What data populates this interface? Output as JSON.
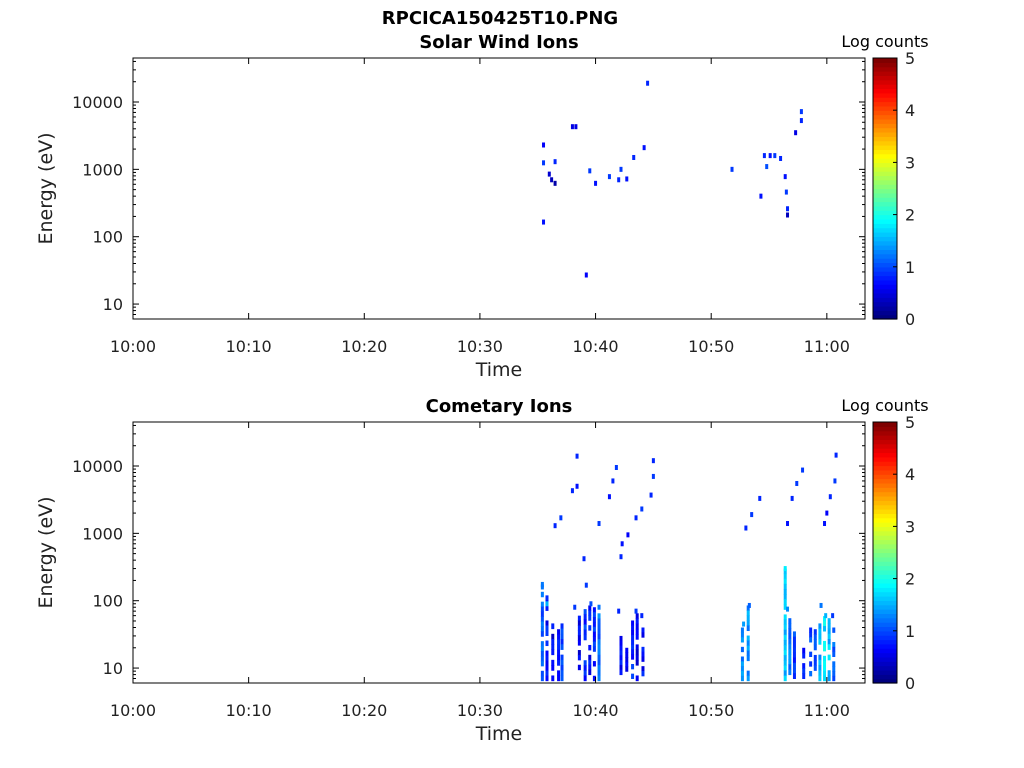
{
  "figure_title": "RPCICA150425T10.PNG",
  "palette_stops": [
    "#00007f",
    "#0000ff",
    "#0080ff",
    "#00ffff",
    "#80ff80",
    "#ffff00",
    "#ff8000",
    "#ff0000",
    "#7f0000"
  ],
  "chart_data": [
    {
      "type": "heatmap",
      "title": "Solar Wind Ions",
      "xlabel": "Time",
      "ylabel": "Energy (eV)",
      "x_ticks": [
        "10:00",
        "10:10",
        "10:20",
        "10:30",
        "10:40",
        "10:50",
        "11:00"
      ],
      "x_range_minutes": [
        0,
        63.3
      ],
      "y_scale": "log",
      "y_ticks": [
        "10",
        "100",
        "1000",
        "10000"
      ],
      "y_range": [
        6,
        45000
      ],
      "colorbar": {
        "label": "Log counts",
        "range": [
          0,
          5
        ],
        "ticks": [
          "0",
          "1",
          "2",
          "3",
          "4",
          "5"
        ]
      },
      "cells": [
        [
          35.5,
          2300,
          0.6
        ],
        [
          35.5,
          1250,
          0.9
        ],
        [
          35.5,
          165,
          0.7
        ],
        [
          36.0,
          850,
          0.4
        ],
        [
          36.2,
          700,
          0.3
        ],
        [
          36.5,
          620,
          0.2
        ],
        [
          36.5,
          1300,
          0.8
        ],
        [
          38.0,
          4300,
          0.5
        ],
        [
          38.3,
          4300,
          0.5
        ],
        [
          39.2,
          27,
          0.6
        ],
        [
          39.5,
          950,
          0.9
        ],
        [
          40.0,
          620,
          0.7
        ],
        [
          41.2,
          780,
          0.9
        ],
        [
          42.0,
          700,
          0.8
        ],
        [
          42.2,
          1000,
          0.9
        ],
        [
          42.7,
          720,
          0.7
        ],
        [
          43.3,
          1500,
          0.8
        ],
        [
          44.2,
          2100,
          0.7
        ],
        [
          44.5,
          19000,
          0.8
        ],
        [
          51.8,
          1000,
          0.9
        ],
        [
          54.3,
          400,
          0.7
        ],
        [
          54.6,
          1600,
          0.8
        ],
        [
          54.8,
          1100,
          1.0
        ],
        [
          55.1,
          1600,
          0.7
        ],
        [
          55.5,
          1600,
          0.9
        ],
        [
          56.0,
          1450,
          0.8
        ],
        [
          56.4,
          780,
          0.7
        ],
        [
          56.5,
          460,
          0.9
        ],
        [
          56.6,
          260,
          0.8
        ],
        [
          56.6,
          210,
          0.3
        ],
        [
          57.3,
          3500,
          0.5
        ],
        [
          57.8,
          7200,
          0.9
        ],
        [
          57.8,
          5300,
          0.8
        ]
      ]
    },
    {
      "type": "heatmap",
      "title": "Cometary Ions",
      "xlabel": "Time",
      "ylabel": "Energy (eV)",
      "x_ticks": [
        "10:00",
        "10:10",
        "10:20",
        "10:30",
        "10:40",
        "10:50",
        "11:00"
      ],
      "x_range_minutes": [
        0,
        63.3
      ],
      "y_scale": "log",
      "y_ticks": [
        "10",
        "100",
        "1000",
        "10000"
      ],
      "y_range": [
        6,
        45000
      ],
      "colorbar": {
        "label": "Log counts",
        "range": [
          0,
          5
        ],
        "ticks": [
          "0",
          "1",
          "2",
          "3",
          "4",
          "5"
        ]
      },
      "cells": [
        [
          38.4,
          14000,
          0.8
        ],
        [
          38.4,
          5000,
          0.7
        ],
        [
          38.0,
          4300,
          0.8
        ],
        [
          37.0,
          1700,
          0.9
        ],
        [
          36.5,
          1300,
          0.8
        ],
        [
          41.8,
          9500,
          0.9
        ],
        [
          41.5,
          6000,
          0.8
        ],
        [
          41.2,
          3500,
          0.7
        ],
        [
          40.3,
          1400,
          0.9
        ],
        [
          42.3,
          700,
          0.7
        ],
        [
          42.2,
          450,
          0.8
        ],
        [
          42.8,
          950,
          0.6
        ],
        [
          43.5,
          1700,
          0.8
        ],
        [
          44.0,
          2300,
          0.9
        ],
        [
          44.8,
          3700,
          0.8
        ],
        [
          45.0,
          7000,
          0.9
        ],
        [
          45.0,
          12000,
          0.8
        ],
        [
          39.0,
          420,
          0.8
        ],
        [
          39.2,
          170,
          0.9
        ],
        [
          53.0,
          1200,
          0.8
        ],
        [
          53.5,
          1900,
          0.9
        ],
        [
          54.2,
          3300,
          0.8
        ],
        [
          56.6,
          1400,
          0.7
        ],
        [
          57.0,
          3300,
          0.8
        ],
        [
          57.4,
          5500,
          0.9
        ],
        [
          57.9,
          8700,
          0.9
        ],
        [
          59.8,
          1400,
          0.7
        ],
        [
          60.3,
          3500,
          0.8
        ],
        [
          60.7,
          6000,
          0.9
        ],
        [
          60.8,
          14500,
          0.8
        ],
        [
          60.0,
          2000,
          0.6
        ],
        [
          35.4,
          160,
          1.2
        ],
        [
          35.8,
          90,
          1.5
        ],
        [
          38.2,
          80,
          0.9
        ],
        [
          39.6,
          90,
          1.0
        ],
        [
          40.3,
          80,
          1.2
        ],
        [
          42.0,
          70,
          0.8
        ],
        [
          43.5,
          70,
          0.9
        ],
        [
          44.0,
          60,
          0.8
        ],
        [
          52.8,
          45,
          1.4
        ],
        [
          53.3,
          85,
          1.1
        ],
        [
          56.4,
          300,
          1.8
        ],
        [
          56.6,
          75,
          1.3
        ],
        [
          59.5,
          85,
          1.2
        ],
        [
          59.9,
          60,
          1.5
        ],
        [
          60.5,
          60,
          0.9
        ]
      ],
      "columns": [
        [
          35.4,
          6.5,
          190,
          1.0
        ],
        [
          35.8,
          6.5,
          120,
          0.6
        ],
        [
          36.3,
          6.5,
          55,
          0.5
        ],
        [
          36.8,
          6.5,
          45,
          0.7
        ],
        [
          37.1,
          6.5,
          55,
          0.8
        ],
        [
          38.6,
          8,
          60,
          0.5
        ],
        [
          39.1,
          6.5,
          75,
          0.8
        ],
        [
          39.5,
          8,
          85,
          0.6
        ],
        [
          39.9,
          6.5,
          80,
          0.7
        ],
        [
          40.3,
          6.5,
          65,
          1.1
        ],
        [
          42.2,
          8,
          30,
          0.6
        ],
        [
          42.7,
          6.5,
          20,
          0.5
        ],
        [
          43.2,
          7,
          60,
          0.7
        ],
        [
          43.6,
          6.5,
          65,
          0.5
        ],
        [
          44.1,
          6.5,
          40,
          0.6
        ],
        [
          52.7,
          6.5,
          40,
          1.2
        ],
        [
          53.2,
          6.5,
          85,
          1.3
        ],
        [
          56.4,
          6.5,
          300,
          1.5
        ],
        [
          56.8,
          8,
          55,
          1.1
        ],
        [
          57.2,
          7,
          35,
          0.8
        ],
        [
          58.0,
          7,
          20,
          0.7
        ],
        [
          58.6,
          6.5,
          40,
          0.9
        ],
        [
          59.0,
          6.5,
          45,
          0.8
        ],
        [
          59.4,
          6.5,
          55,
          1.4
        ],
        [
          59.8,
          6.5,
          70,
          1.7
        ],
        [
          60.2,
          6.5,
          55,
          1.5
        ],
        [
          60.6,
          6.5,
          40,
          1.1
        ]
      ]
    }
  ]
}
